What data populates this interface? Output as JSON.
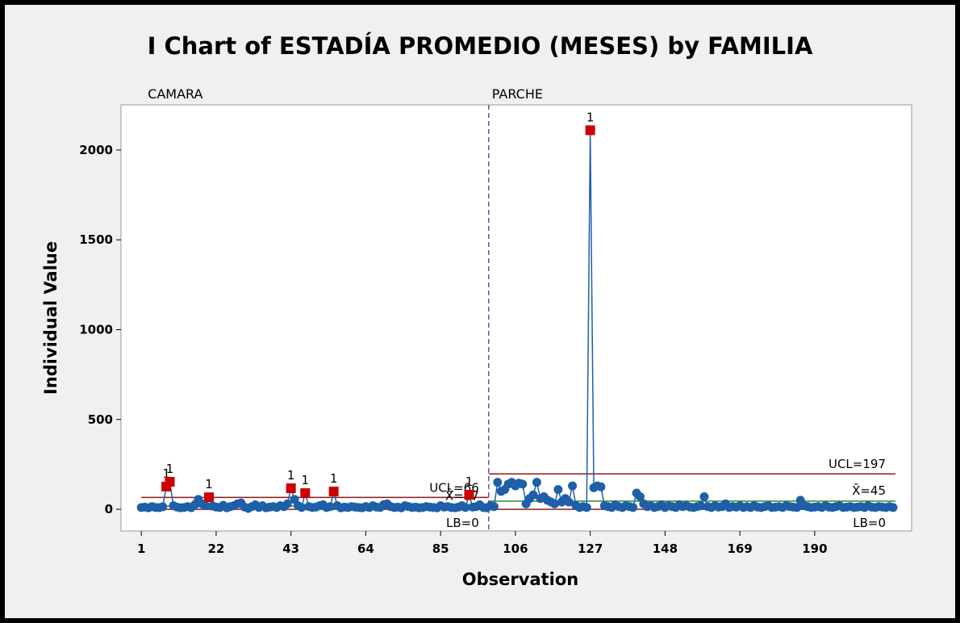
{
  "chart_data": {
    "type": "i-chart",
    "title": "I Chart of ESTADÍA PROMEDIO (MESES) by FAMILIA",
    "x_label": "Observation",
    "y_label": "Individual Value",
    "xlim": [
      -4.7,
      217.2
    ],
    "ylim": [
      -121,
      2251
    ],
    "xticks": [
      1,
      22,
      43,
      64,
      85,
      106,
      127,
      148,
      169,
      190
    ],
    "yticks": [
      0,
      500,
      1000,
      1500,
      2000
    ],
    "color": "#1f5fa8",
    "flag_color": "#cc0000",
    "flag_label": "1",
    "series": [
      {
        "name": "CAMARA",
        "x": [
          1,
          2,
          3,
          4,
          5,
          6,
          7,
          8,
          9,
          10,
          11,
          12,
          13,
          14,
          15,
          16,
          17,
          18,
          19,
          20,
          21,
          22,
          23,
          24,
          25,
          26,
          27,
          28,
          29,
          30,
          31,
          32,
          33,
          34,
          35,
          36,
          37,
          38,
          39,
          40,
          41,
          42,
          43,
          44,
          45,
          46,
          47,
          48,
          49,
          50,
          51,
          52,
          53,
          54,
          55,
          56,
          57,
          58,
          59,
          60,
          61,
          62,
          63,
          64,
          65,
          66,
          67,
          68,
          69,
          70,
          71,
          72,
          73,
          74,
          75,
          76,
          77,
          78,
          79,
          80,
          81,
          82,
          83,
          84,
          85,
          86,
          87,
          88,
          89,
          90,
          91,
          92,
          93,
          94,
          95,
          96,
          97,
          98
        ],
        "values": [
          10,
          12,
          8,
          15,
          10,
          9,
          14,
          126,
          153,
          20,
          12,
          8,
          10,
          15,
          9,
          25,
          55,
          30,
          20,
          67,
          18,
          12,
          10,
          22,
          8,
          15,
          20,
          30,
          35,
          12,
          5,
          15,
          25,
          10,
          20,
          8,
          12,
          15,
          10,
          20,
          15,
          30,
          117,
          55,
          20,
          10,
          90,
          15,
          10,
          12,
          20,
          25,
          10,
          15,
          99,
          20,
          8,
          12,
          10,
          15,
          12,
          10,
          8,
          15,
          10,
          20,
          12,
          10,
          25,
          30,
          15,
          10,
          12,
          8,
          20,
          15,
          10,
          12,
          8,
          10,
          15,
          12,
          10,
          8,
          20,
          12,
          15,
          10,
          8,
          12,
          20,
          10,
          81,
          12,
          15,
          25,
          10,
          8
        ],
        "flagged_x": [
          8,
          9,
          20,
          43,
          47,
          55,
          93
        ],
        "ucl": 66,
        "ucl_label": "UCL=66",
        "mean": 17,
        "mean_label": "X̄=17",
        "lb": 0,
        "lb_label": "LB=0"
      },
      {
        "name": "PARCHE",
        "x": [
          99,
          100,
          101,
          102,
          103,
          104,
          105,
          106,
          107,
          108,
          109,
          110,
          111,
          112,
          113,
          114,
          115,
          116,
          117,
          118,
          119,
          120,
          121,
          122,
          123,
          124,
          125,
          126,
          127,
          128,
          129,
          130,
          131,
          132,
          133,
          134,
          135,
          136,
          137,
          138,
          139,
          140,
          141,
          142,
          143,
          144,
          145,
          146,
          147,
          148,
          149,
          150,
          151,
          152,
          153,
          154,
          155,
          156,
          157,
          158,
          159,
          160,
          161,
          162,
          163,
          164,
          165,
          166,
          167,
          168,
          169,
          170,
          171,
          172,
          173,
          174,
          175,
          176,
          177,
          178,
          179,
          180,
          181,
          182,
          183,
          184,
          185,
          186,
          187,
          188,
          189,
          190,
          191,
          192,
          193,
          194,
          195,
          196,
          197,
          198,
          199,
          200,
          201,
          202,
          203,
          204,
          205,
          206,
          207,
          208,
          209,
          210,
          211,
          212
        ],
        "values": [
          20,
          15,
          150,
          100,
          110,
          140,
          150,
          130,
          145,
          140,
          30,
          60,
          80,
          150,
          60,
          70,
          50,
          40,
          30,
          110,
          40,
          60,
          40,
          130,
          20,
          10,
          15,
          10,
          2110,
          120,
          130,
          125,
          20,
          15,
          10,
          25,
          15,
          10,
          20,
          15,
          10,
          90,
          70,
          30,
          15,
          20,
          10,
          15,
          25,
          10,
          20,
          15,
          10,
          25,
          15,
          20,
          12,
          10,
          15,
          20,
          70,
          15,
          10,
          20,
          12,
          15,
          30,
          10,
          15,
          12,
          20,
          10,
          15,
          10,
          20,
          12,
          10,
          15,
          20,
          10,
          12,
          15,
          10,
          20,
          15,
          12,
          10,
          50,
          20,
          15,
          10,
          12,
          15,
          10,
          20,
          12,
          10,
          15,
          20,
          10,
          12,
          15,
          10,
          12,
          15,
          10,
          20,
          12,
          10,
          15,
          12,
          10,
          15,
          10
        ],
        "flagged_x": [
          127
        ],
        "ucl": 197,
        "ucl_label": "UCL=197",
        "mean": 45,
        "mean_label": "X̄=45",
        "lb": 0,
        "lb_label": "LB=0"
      }
    ]
  }
}
